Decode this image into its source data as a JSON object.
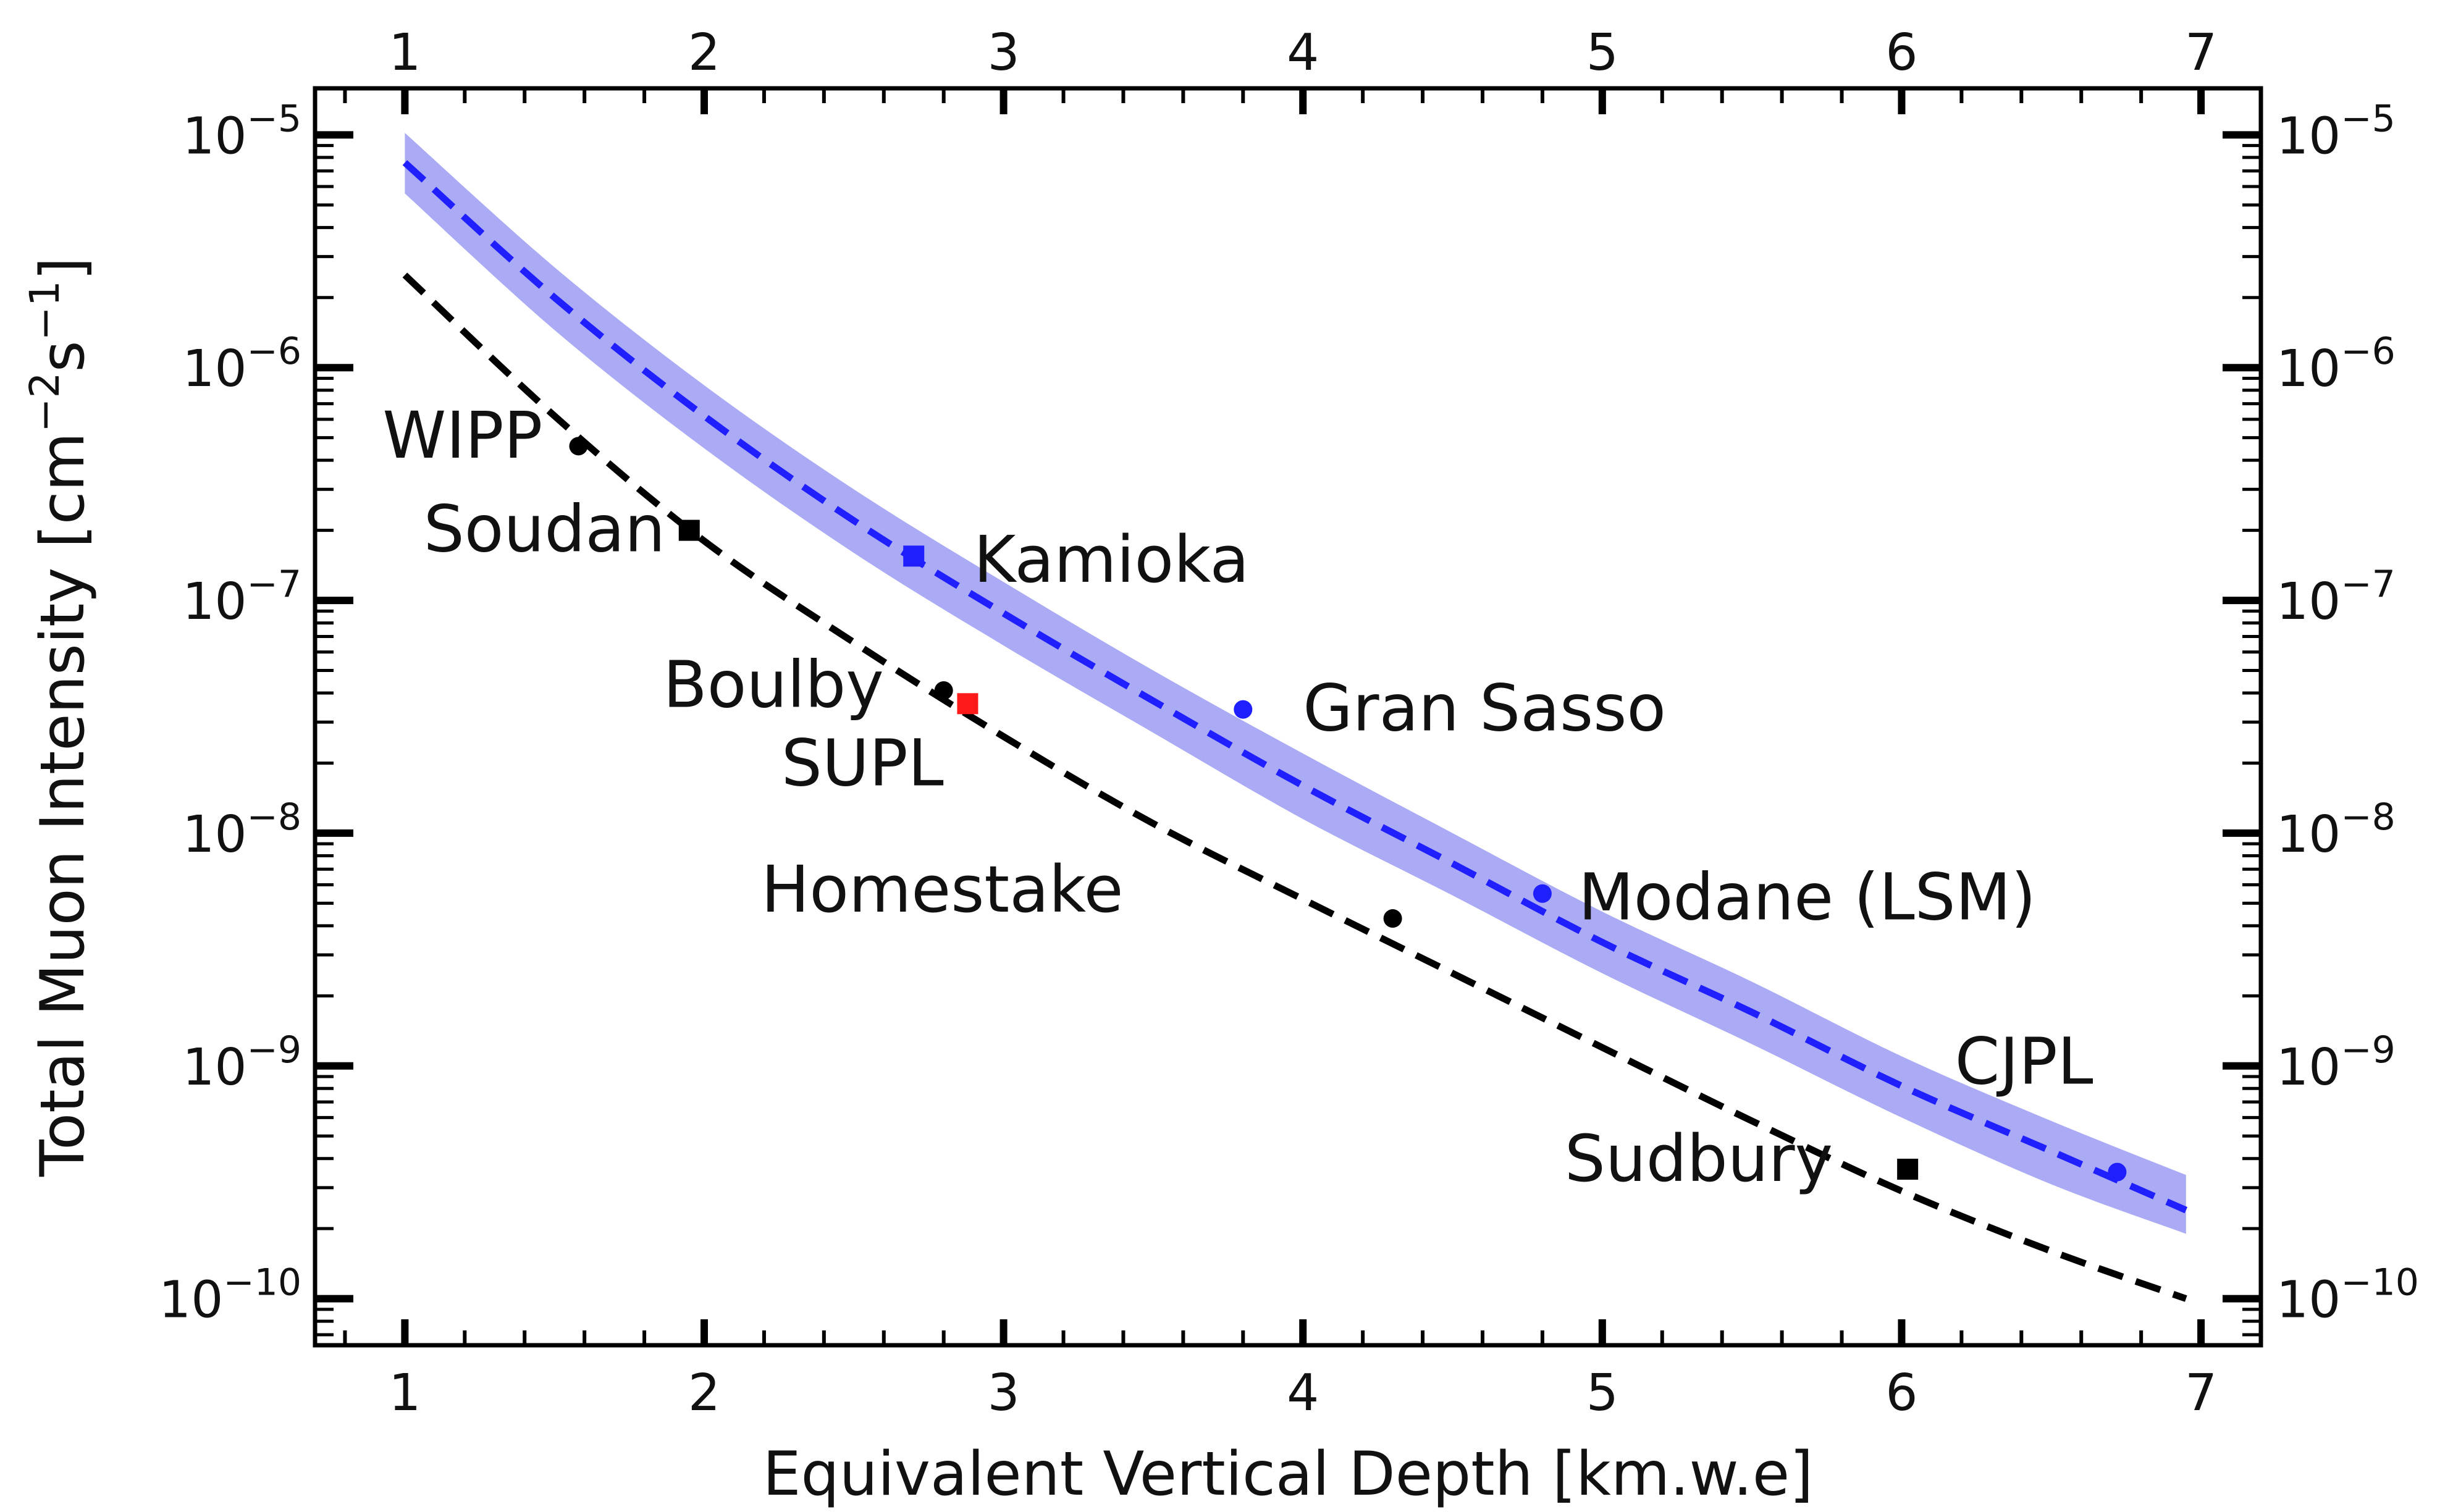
{
  "chart_data": {
    "type": "line",
    "xlabel": "Equivalent Vertical Depth [km.w.e]",
    "ylabel_parts": [
      "Total Muon Intensity [cm",
      "−2",
      "s",
      "−1",
      "]"
    ],
    "xlim": [
      0.7,
      7.2
    ],
    "ylim_log10": [
      -10.2,
      -4.8
    ],
    "y_scale": "log",
    "x_ticks": [
      1,
      2,
      3,
      4,
      5,
      6,
      7
    ],
    "x_tick_labels": [
      "1",
      "2",
      "3",
      "4",
      "5",
      "6",
      "7"
    ],
    "y_ticks_exp": [
      -10,
      -9,
      -8,
      -7,
      -6,
      -5
    ],
    "y_tick_base": "10",
    "y_tick_sups": [
      "−10",
      "−9",
      "−8",
      "−7",
      "−6",
      "−5"
    ],
    "colors": {
      "blue": "#1f1fff",
      "band": "#8f8ff2",
      "black": "#000000",
      "red": "#ff1a1a"
    },
    "series": [
      {
        "style": "blue-dashed",
        "x": [
          1.0,
          1.5,
          2.0,
          2.5,
          3.0,
          3.5,
          4.0,
          4.5,
          5.0,
          5.5,
          6.0,
          6.5,
          6.95
        ],
        "y": [
          7.6e-06,
          2e-06,
          6.2e-07,
          2.2e-07,
          8.8e-08,
          3.7e-08,
          1.6e-08,
          7.4e-09,
          3.4e-09,
          1.7e-09,
          8.2e-10,
          4.3e-10,
          2.4e-10
        ],
        "band_upper": [
          1.02e-05,
          2.7e-06,
          8.4e-07,
          3e-07,
          1.2e-07,
          5e-08,
          2.2e-08,
          1e-08,
          4.6e-09,
          2.3e-09,
          1.1e-09,
          5.8e-10,
          3.4e-10
        ],
        "band_lower": [
          5.6e-06,
          1.45e-06,
          4.5e-07,
          1.6e-07,
          6.4e-08,
          2.7e-08,
          1.15e-08,
          5.4e-09,
          2.5e-09,
          1.24e-09,
          6e-10,
          3.1e-10,
          1.9e-10
        ]
      },
      {
        "style": "black-dashed",
        "x": [
          1.0,
          1.5,
          2.0,
          2.5,
          3.0,
          3.5,
          4.0,
          4.5,
          5.0,
          5.5,
          6.0,
          6.5,
          6.95
        ],
        "y": [
          2.5e-06,
          6.2e-07,
          1.8e-07,
          6.6e-08,
          2.6e-08,
          1.1e-08,
          5.2e-09,
          2.5e-09,
          1.2e-09,
          5.8e-10,
          2.9e-10,
          1.6e-10,
          1e-10
        ]
      }
    ],
    "sites": [
      {
        "name": "WIPP",
        "x": 1.58,
        "y": 4.6e-07,
        "marker": "circle",
        "color": "black",
        "label_anchor": "end",
        "label_dx": -0.12,
        "label_dy_log": 0.04
      },
      {
        "name": "Soudan",
        "x": 1.95,
        "y": 2e-07,
        "marker": "square",
        "color": "black",
        "label_anchor": "end",
        "label_dx": -0.08,
        "label_dy_log": 0.0
      },
      {
        "name": "Kamioka",
        "x": 2.7,
        "y": 1.55e-07,
        "marker": "square",
        "color": "blue",
        "label_anchor": "start",
        "label_dx": 0.2,
        "label_dy_log": -0.02
      },
      {
        "name": "Boulby",
        "x": 2.8,
        "y": 4.1e-08,
        "marker": "circle",
        "color": "black",
        "label_anchor": "end",
        "label_dx": -0.2,
        "label_dy_log": 0.02
      },
      {
        "name": "SUPL",
        "x": 2.88,
        "y": 3.6e-08,
        "marker": "square",
        "color": "red",
        "label_anchor": "end",
        "label_dx": -0.08,
        "label_dy_log": -0.26
      },
      {
        "name": "Gran Sasso",
        "x": 3.8,
        "y": 3.4e-08,
        "marker": "circle",
        "color": "blue",
        "label_anchor": "start",
        "label_dx": 0.2,
        "label_dy_log": 0.0
      },
      {
        "name": "Homestake",
        "x": 4.3,
        "y": 4.3e-09,
        "marker": "circle",
        "color": "black",
        "label_anchor": "end",
        "label_dx": -0.9,
        "label_dy_log": 0.12
      },
      {
        "name": "Modane (LSM)",
        "x": 4.8,
        "y": 5.5e-09,
        "marker": "circle",
        "color": "blue",
        "label_anchor": "start",
        "label_dx": 0.12,
        "label_dy_log": -0.02
      },
      {
        "name": "CJPL",
        "x": 6.72,
        "y": 3.5e-10,
        "marker": "circle",
        "color": "blue",
        "label_anchor": "end",
        "label_dx": -0.08,
        "label_dy_log": 0.47
      },
      {
        "name": "Sudbury",
        "x": 6.02,
        "y": 3.6e-10,
        "marker": "square",
        "color": "black",
        "label_anchor": "end",
        "label_dx": -0.25,
        "label_dy_log": 0.04
      }
    ]
  }
}
